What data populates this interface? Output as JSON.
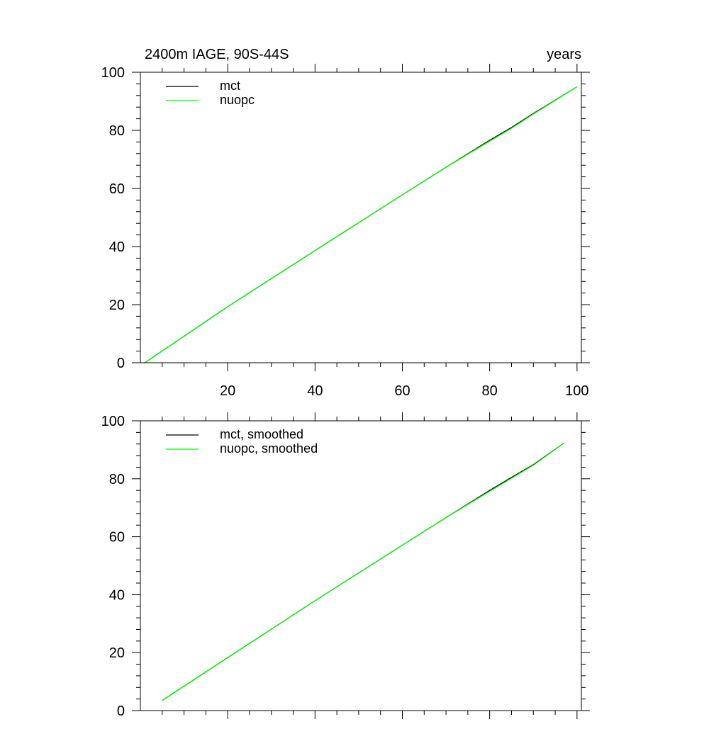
{
  "chart_data": [
    {
      "type": "line",
      "title": "2400m IAGE, 90S-44S",
      "right_title": "years",
      "xlabel": "",
      "ylabel": "",
      "xlim": [
        0,
        101
      ],
      "ylim": [
        0,
        100
      ],
      "xticks": [
        20,
        40,
        60,
        80,
        100
      ],
      "yticks": [
        0,
        20,
        40,
        60,
        80,
        100
      ],
      "x_tick_labels_shown": true,
      "grid": false,
      "legend_position": "top-left",
      "series": [
        {
          "name": "mct",
          "color": "#000000",
          "x": [
            1,
            20,
            40,
            60,
            70,
            80,
            85,
            90,
            95,
            100
          ],
          "y": [
            0,
            19.3,
            38.6,
            57.8,
            67.3,
            76.6,
            81.0,
            85.8,
            90.4,
            95.0
          ]
        },
        {
          "name": "nuopc",
          "color": "#00ff00",
          "x": [
            1,
            20,
            40,
            60,
            70,
            80,
            85,
            90,
            95,
            100
          ],
          "y": [
            0,
            19.3,
            38.6,
            57.8,
            67.3,
            76.3,
            80.7,
            85.6,
            90.3,
            95.0
          ]
        }
      ]
    },
    {
      "type": "line",
      "title": "",
      "xlabel": "",
      "ylabel": "",
      "xlim": [
        0,
        101
      ],
      "ylim": [
        0,
        100
      ],
      "xticks": [
        20,
        40,
        60,
        80,
        100
      ],
      "yticks": [
        0,
        20,
        40,
        60,
        80,
        100
      ],
      "x_tick_labels_shown": false,
      "grid": false,
      "legend_position": "top-left",
      "series": [
        {
          "name": "mct, smoothed",
          "color": "#000000",
          "x": [
            5,
            20,
            40,
            60,
            70,
            80,
            85,
            90,
            97
          ],
          "y": [
            3.5,
            18.3,
            37.9,
            57.1,
            66.6,
            76.0,
            80.5,
            84.9,
            92.3
          ]
        },
        {
          "name": "nuopc, smoothed",
          "color": "#00ff00",
          "x": [
            5,
            20,
            40,
            60,
            70,
            80,
            85,
            90,
            97
          ],
          "y": [
            3.5,
            18.3,
            37.9,
            57.1,
            66.6,
            75.7,
            80.2,
            84.7,
            92.3
          ]
        }
      ]
    }
  ]
}
